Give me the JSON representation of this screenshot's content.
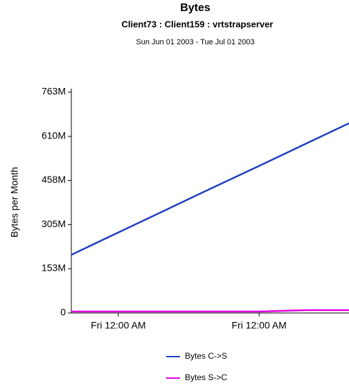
{
  "chart_data": {
    "type": "line",
    "title": "Bytes",
    "subtitle": "Client73 : Client159 : vrtstrapserver",
    "date_range": "Sun Jun 01 2003 - Tue Jul 01 2003",
    "y_label": "Bytes per Month",
    "categories": [
      null,
      "Fri 12:00 AM",
      null,
      null,
      "Fri 12:00 AM",
      null,
      null
    ],
    "series": [
      {
        "name": "Bytes C->S",
        "color": "#1f3fbf",
        "values": [
          201000000,
          278000000,
          355000000,
          432000000,
          508000000,
          585000000,
          662000000
        ]
      },
      {
        "name": "Bytes S->C",
        "color": "#e000e0",
        "values": [
          5000000,
          5000000,
          5000000,
          5000000,
          5000000,
          10000000,
          10000000
        ]
      }
    ],
    "ylim": [
      0,
      763000000
    ],
    "yticks": [
      {
        "value": 0,
        "label": "0"
      },
      {
        "value": 153000000,
        "label": "153M"
      },
      {
        "value": 305000000,
        "label": "305M"
      },
      {
        "value": 458000000,
        "label": "458M"
      },
      {
        "value": 610000000,
        "label": "610M"
      },
      {
        "value": 763000000,
        "label": "763M"
      }
    ]
  }
}
